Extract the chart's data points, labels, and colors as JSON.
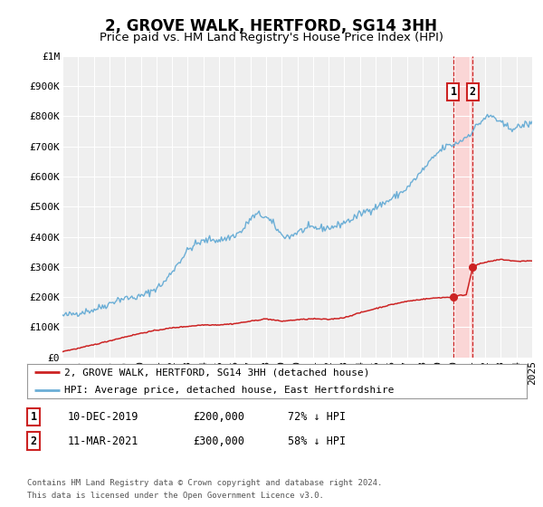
{
  "title": "2, GROVE WALK, HERTFORD, SG14 3HH",
  "subtitle": "Price paid vs. HM Land Registry's House Price Index (HPI)",
  "xlim": [
    1995,
    2025
  ],
  "ylim": [
    0,
    1000000
  ],
  "yticks": [
    0,
    100000,
    200000,
    300000,
    400000,
    500000,
    600000,
    700000,
    800000,
    900000,
    1000000
  ],
  "ytick_labels": [
    "£0",
    "£100K",
    "£200K",
    "£300K",
    "£400K",
    "£500K",
    "£600K",
    "£700K",
    "£800K",
    "£900K",
    "£1M"
  ],
  "xticks": [
    1995,
    1996,
    1997,
    1998,
    1999,
    2000,
    2001,
    2002,
    2003,
    2004,
    2005,
    2006,
    2007,
    2008,
    2009,
    2010,
    2011,
    2012,
    2013,
    2014,
    2015,
    2016,
    2017,
    2018,
    2019,
    2020,
    2021,
    2022,
    2023,
    2024,
    2025
  ],
  "hpi_color": "#6baed6",
  "price_color": "#cc2222",
  "marker_color": "#cc2222",
  "vline1_x": 2019.97,
  "vline2_x": 2021.2,
  "transaction1": {
    "date": "10-DEC-2019",
    "price": 200000,
    "pct": "72%",
    "direction": "↓",
    "year": 2019.97
  },
  "transaction2": {
    "date": "11-MAR-2021",
    "price": 300000,
    "pct": "58%",
    "direction": "↓",
    "year": 2021.2
  },
  "legend_label1": "2, GROVE WALK, HERTFORD, SG14 3HH (detached house)",
  "legend_label2": "HPI: Average price, detached house, East Hertfordshire",
  "footer1": "Contains HM Land Registry data © Crown copyright and database right 2024.",
  "footer2": "This data is licensed under the Open Government Licence v3.0.",
  "bg_color": "#ffffff",
  "plot_bg_color": "#efefef",
  "grid_color": "#ffffff",
  "title_fontsize": 12,
  "subtitle_fontsize": 9.5,
  "tick_fontsize": 8,
  "label_fontsize": 8.5,
  "legend_fontsize": 8,
  "footer_fontsize": 6.5
}
